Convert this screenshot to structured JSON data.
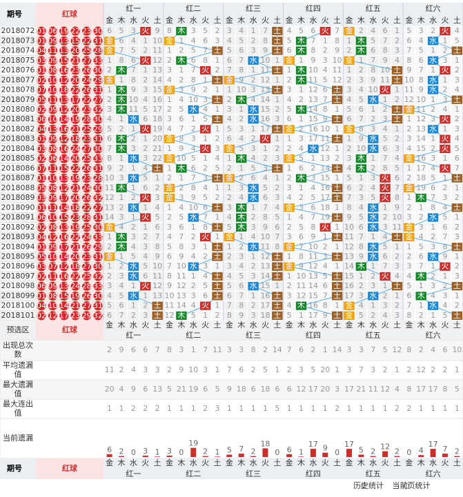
{
  "header": {
    "period_label": "期号",
    "ball_label": "红球"
  },
  "elements": [
    "金",
    "木",
    "水",
    "火",
    "土"
  ],
  "periods": [
    "2018072",
    "2018073",
    "2018074",
    "2018075",
    "2018076",
    "2018077",
    "2018078",
    "2018079",
    "2018080",
    "2018081",
    "2018082",
    "2018083",
    "2018084",
    "2018085",
    "2018086",
    "2018087",
    "2018088",
    "2018089",
    "2018090",
    "2018091",
    "2018092",
    "2018093",
    "2018094",
    "2018095",
    "2018096",
    "2018097",
    "2018098",
    "2018099",
    "2018100",
    "2018101"
  ],
  "balls": [
    [
      "01",
      "06",
      "19",
      "22",
      "23",
      "30"
    ],
    [
      "01",
      "09",
      "13",
      "15",
      "22",
      "31"
    ],
    [
      "04",
      "11",
      "13",
      "20",
      "25",
      "28"
    ],
    [
      "03",
      "09",
      "15",
      "21",
      "27",
      "33"
    ],
    [
      "01",
      "08",
      "16",
      "23",
      "26",
      "30"
    ],
    [
      "02",
      "10",
      "12",
      "20",
      "24",
      "29"
    ],
    [
      "07",
      "10",
      "18",
      "22",
      "26",
      "31"
    ],
    [
      "05",
      "11",
      "13",
      "17",
      "22",
      "27"
    ],
    [
      "02",
      "09",
      "12",
      "20",
      "23",
      "32"
    ],
    [
      "06",
      "10",
      "14",
      "19",
      "28",
      "30"
    ],
    [
      "04",
      "13",
      "16",
      "21",
      "25",
      "29"
    ],
    [
      "01",
      "09",
      "12",
      "18",
      "23",
      "31"
    ],
    [
      "03",
      "08",
      "16",
      "24",
      "27",
      "30"
    ],
    [
      "02",
      "06",
      "14",
      "20",
      "25",
      "33"
    ],
    [
      "07",
      "11",
      "15",
      "22",
      "26",
      "31"
    ],
    [
      "01",
      "10",
      "13",
      "19",
      "23",
      "28"
    ],
    [
      "05",
      "08",
      "12",
      "21",
      "24",
      "30"
    ],
    [
      "03",
      "09",
      "17",
      "20",
      "26",
      "32"
    ],
    [
      "01",
      "11",
      "14",
      "18",
      "22",
      "27"
    ],
    [
      "06",
      "10",
      "15",
      "23",
      "28",
      "31"
    ],
    [
      "02",
      "08",
      "13",
      "19",
      "25",
      "30"
    ],
    [
      "04",
      "12",
      "16",
      "22",
      "24",
      "33"
    ],
    [
      "01",
      "09",
      "17",
      "21",
      "26",
      "29"
    ],
    [
      "05",
      "10",
      "14",
      "20",
      "23",
      "31"
    ],
    [
      "03",
      "07",
      "12",
      "18",
      "27",
      "30"
    ],
    [
      "02",
      "11",
      "16",
      "22",
      "25",
      "32"
    ],
    [
      "06",
      "09",
      "13",
      "24",
      "28",
      "33"
    ],
    [
      "01",
      "08",
      "15",
      "19",
      "26",
      "30"
    ],
    [
      "04",
      "10",
      "14",
      "21",
      "27",
      "31"
    ],
    [
      "02",
      "12",
      "17",
      "23",
      "29",
      "32"
    ]
  ],
  "groups": [
    {
      "name": "红一",
      "cols": [
        [
          6,
          "金",
          "金",
          1,
          2,
          "金",
          1,
          2,
          3,
          4,
          5,
          6,
          7,
          8,
          9,
          10,
          11,
          12,
          13,
          14,
          "金",
          1,
          2,
          "金",
          1,
          2,
          3,
          4,
          5,
          6
        ],
        [
          5,
          6,
          7,
          8,
          "木",
          1,
          "木",
          "木",
          "木",
          1,
          2,
          "木",
          "木",
          1,
          2,
          3,
          "木",
          1,
          2,
          3,
          4,
          "木",
          "木",
          1,
          2,
          3,
          4,
          5,
          6,
          7
        ],
        [
          3,
          4,
          5,
          6,
          7,
          8,
          9,
          10,
          11,
          "水",
          1,
          2,
          3,
          "水",
          1,
          "水",
          1,
          2,
          "水",
          1,
          2,
          3,
          4,
          5,
          "水",
          "水",
          1,
          "水",
          1,
          2
        ],
        [
          "火",
          1,
          2,
          "火",
          1,
          2,
          3,
          4,
          5,
          6,
          "火",
          1,
          2,
          3,
          4,
          5,
          6,
          "火",
          1,
          "火",
          1,
          2,
          3,
          4,
          5,
          6,
          "火",
          1,
          2,
          3
        ],
        [
          9,
          10,
          11,
          12,
          13,
          14,
          15,
          16,
          17,
          18,
          19,
          20,
          21,
          22,
          "土",
          1,
          2,
          3,
          4,
          5,
          6,
          7,
          8,
          9,
          10,
          11,
          12,
          13,
          "土",
          "土"
        ]
      ]
    },
    {
      "name": "红二",
      "cols": [
        [
          8,
          "金",
          1,
          2,
          3,
          4,
          "金",
          1,
          2,
          3,
          4,
          "金",
          1,
          "金",
          1,
          2,
          "金",
          "金",
          1,
          2,
          3,
          4,
          5,
          6,
          7,
          8,
          9,
          10,
          11,
          12
        ],
        [
          "木",
          1,
          2,
          "木",
          1,
          2,
          3,
          4,
          5,
          6,
          7,
          8,
          9,
          10,
          "木",
          1,
          2,
          3,
          4,
          5,
          6,
          7,
          8,
          9,
          10,
          11,
          12,
          13,
          14,
          "木"
        ],
        [
          3,
          4,
          5,
          6,
          7,
          8,
          9,
          10,
          "水",
          1,
          2,
          3,
          4,
          5,
          6,
          7,
          8,
          9,
          10,
          "水",
          1,
          2,
          3,
          4,
          "水",
          1,
          2,
          3,
          4,
          5
        ],
        [
          5,
          6,
          7,
          8,
          "火",
          1,
          2,
          3,
          4,
          5,
          "火",
          1,
          "火",
          1,
          2,
          3,
          4,
          5,
          6,
          7,
          8,
          "火",
          1,
          2,
          3,
          4,
          5,
          6,
          "火",
          1
        ],
        [
          2,
          3,
          "土",
          1,
          2,
          "土",
          1,
          "土",
          1,
          "土",
          1,
          2,
          3,
          4,
          5,
          "土",
          1,
          2,
          "土",
          1,
          "土",
          1,
          "土",
          "土",
          1,
          "土",
          "土",
          "土",
          1,
          2
        ]
      ]
    },
    {
      "name": "红三",
      "cols": [
        [
          3,
          4,
          5,
          6,
          7,
          "金",
          1,
          2,
          3,
          4,
          5,
          6,
          "金",
          1,
          2,
          "金",
          1,
          2,
          3,
          4,
          5,
          "金",
          1,
          2,
          3,
          4,
          5,
          6,
          7,
          8
        ],
        [
          4,
          5,
          6,
          7,
          8,
          9,
          10,
          "木",
          1,
          2,
          3,
          4,
          5,
          "木",
          1,
          2,
          3,
          4,
          "木",
          "木",
          "木",
          1,
          2,
          3,
          4,
          5,
          6,
          7,
          8,
          9
        ],
        [
          1,
          2,
          3,
          "水",
          1,
          2,
          3,
          4,
          "水",
          "水",
          1,
          2,
          3,
          4,
          5,
          6,
          "水",
          "水",
          1,
          2,
          3,
          4,
          "水",
          1,
          2,
          3,
          "水",
          1,
          2,
          3
        ],
        [
          7,
          8,
          9,
          10,
          11,
          12,
          13,
          14,
          15,
          16,
          17,
          "火",
          1,
          2,
          3,
          4,
          5,
          6,
          7,
          8,
          9,
          10,
          11,
          12,
          13,
          14,
          15,
          16,
          17,
          18
        ],
        [
          "土",
          "土",
          "土",
          1,
          "土",
          1,
          "土",
          1,
          2,
          3,
          "土",
          1,
          2,
          3,
          "土",
          1,
          2,
          3,
          4,
          5,
          6,
          7,
          8,
          "土",
          "土",
          "土",
          1,
          "土",
          "土",
          "土"
        ]
      ]
    },
    {
      "name": "红四",
      "cols": [
        [
          4,
          5,
          6,
          "金",
          1,
          2,
          3,
          4,
          5,
          6,
          "金",
          1,
          2,
          "金",
          1,
          2,
          3,
          4,
          "金",
          1,
          2,
          3,
          "金",
          1,
          "金",
          1,
          2,
          3,
          4,
          5
        ],
        [
          5,
          "木",
          "木",
          1,
          "木",
          "木",
          1,
          2,
          "木",
          1,
          2,
          3,
          4,
          5,
          6,
          "木",
          1,
          2,
          3,
          4,
          5,
          6,
          7,
          8,
          9,
          10,
          11,
          12,
          "木",
          1
        ],
        [
          6,
          7,
          8,
          9,
          10,
          11,
          12,
          13,
          14,
          15,
          16,
          17,
          "水",
          1,
          2,
          3,
          4,
          5,
          6,
          7,
          8,
          9,
          10,
          11,
          12,
          13,
          14,
          15,
          16,
          17
        ],
        [
          "火",
          1,
          2,
          3,
          4,
          5,
          6,
          7,
          8,
          9,
          10,
          11,
          12,
          13,
          14,
          15,
          16,
          17,
          18,
          19,
          "火",
          1,
          2,
          3,
          4,
          5,
          6,
          7,
          8,
          9
        ],
        [
          7,
          8,
          9,
          10,
          11,
          12,
          "土",
          "土",
          1,
          "土",
          1,
          "土",
          1,
          2,
          "土",
          1,
          "土",
          "土",
          1,
          "土",
          1,
          "土",
          1,
          "土",
          1,
          "土",
          "土",
          "土",
          1,
          "土"
        ]
      ]
    },
    {
      "name": "红五",
      "cols": [
        [
          "金",
          1,
          2,
          "金",
          1,
          2,
          3,
          4,
          5,
          6,
          "金",
          1,
          2,
          3,
          4,
          5,
          6,
          7,
          8,
          9,
          10,
          11,
          12,
          13,
          14,
          15,
          16,
          17,
          "金",
          "金"
        ],
        [
          2,
          "木",
          "木",
          1,
          2,
          3,
          4,
          5,
          6,
          7,
          8,
          9,
          10,
          "木",
          "木",
          1,
          2,
          3,
          4,
          5,
          6,
          7,
          8,
          9,
          "木",
          1,
          2,
          3,
          4,
          5
        ],
        [
          4,
          5,
          6,
          7,
          8,
          9,
          10,
          "水",
          1,
          2,
          3,
          "水",
          "水",
          1,
          2,
          3,
          4,
          5,
          "水",
          "水",
          "水",
          1,
          "水",
          "水",
          1,
          2,
          3,
          "水",
          1,
          2
        ],
        [
          6,
          7,
          8,
          9,
          10,
          11,
          "火",
          1,
          2,
          3,
          4,
          5,
          6,
          7,
          8,
          "火",
          "火",
          "火",
          1,
          2,
          3,
          4,
          5,
          6,
          7,
          "火",
          1,
          2,
          3,
          4
        ],
        [
          1,
          2,
          3,
          4,
          "土",
          "土",
          1,
          2,
          "土",
          "土",
          1,
          2,
          3,
          4,
          5,
          6,
          7,
          8,
          9,
          10,
          11,
          "土",
          1,
          2,
          3,
          4,
          "土",
          1,
          2,
          3
        ]
      ]
    },
    {
      "name": "红六",
      "cols": [
        [
          5,
          6,
          7,
          8,
          9,
          10,
          11,
          12,
          "金",
          1,
          2,
          3,
          4,
          "金",
          1,
          2,
          "金",
          1,
          2,
          3,
          "金",
          "金",
          1,
          2,
          3,
          4,
          5,
          6,
          7,
          8
        ],
        [
          3,
          4,
          5,
          6,
          7,
          8,
          9,
          10,
          11,
          12,
          13,
          14,
          15,
          16,
          17,
          18,
          19,
          "木",
          1,
          2,
          3,
          4,
          5,
          6,
          7,
          "木",
          1,
          "木",
          1,
          2
        ],
        [
          2,
          "水",
          1,
          "水",
          1,
          "水",
          "水",
          1,
          2,
          3,
          "水",
          1,
          2,
          3,
          4,
          5,
          6,
          7,
          8,
          "水",
          1,
          2,
          3,
          "水",
          1,
          2,
          3,
          4,
          "水",
          1
        ],
        [
          "火",
          1,
          2,
          3,
          "火",
          1,
          2,
          3,
          4,
          "火",
          1,
          "火",
          "火",
          1,
          "火",
          1,
          2,
          3,
          4,
          5,
          6,
          7,
          8,
          9,
          "火",
          1,
          2,
          3,
          4,
          5
        ],
        [
          4,
          5,
          "土",
          1,
          2,
          3,
          4,
          "土",
          1,
          2,
          3,
          4,
          5,
          6,
          7,
          "土",
          1,
          2,
          "土",
          1,
          2,
          3,
          "土",
          1,
          2,
          3,
          "土",
          1,
          2,
          "土"
        ]
      ]
    }
  ],
  "preselect_label": "预选区",
  "stats": [
    {
      "label": "出现总次数",
      "values": [
        2,
        9,
        6,
        6,
        7,
        8,
        3,
        1,
        7,
        11,
        3,
        3,
        8,
        2,
        14,
        7,
        6,
        2,
        1,
        14,
        3,
        3,
        7,
        5,
        12,
        8,
        2,
        4,
        6,
        10
      ]
    },
    {
      "label": "平均遗漏值",
      "values": [
        11,
        2,
        4,
        3,
        3,
        2,
        9,
        10,
        3,
        1,
        7,
        6,
        2,
        5,
        1,
        2,
        3,
        5,
        20,
        1,
        3,
        7,
        3,
        2,
        1,
        2,
        12,
        2,
        2,
        1
      ]
    },
    {
      "label": "最大遗漏值",
      "values": [
        20,
        4,
        9,
        6,
        13,
        5,
        21,
        19,
        6,
        5,
        9,
        18,
        6,
        18,
        6,
        6,
        12,
        17,
        20,
        3,
        17,
        21,
        11,
        12,
        4,
        8,
        17,
        17,
        8,
        5
      ]
    },
    {
      "label": "最大连出值",
      "values": [
        1,
        1,
        2,
        2,
        2,
        1,
        1,
        1,
        2,
        3,
        1,
        1,
        1,
        1,
        5,
        1,
        1,
        1,
        1,
        2,
        1,
        1,
        1,
        1,
        2,
        2,
        1,
        1,
        1,
        1
      ]
    }
  ],
  "current": {
    "label": "当前遗漏",
    "values": [
      6,
      2,
      0,
      3,
      1,
      3,
      0,
      19,
      2,
      1,
      5,
      7,
      2,
      18,
      0,
      6,
      1,
      17,
      9,
      0,
      17,
      5,
      2,
      12,
      2,
      0,
      4,
      17,
      7,
      2
    ]
  },
  "legend": [
    "历史统计",
    "当前页统计"
  ]
}
